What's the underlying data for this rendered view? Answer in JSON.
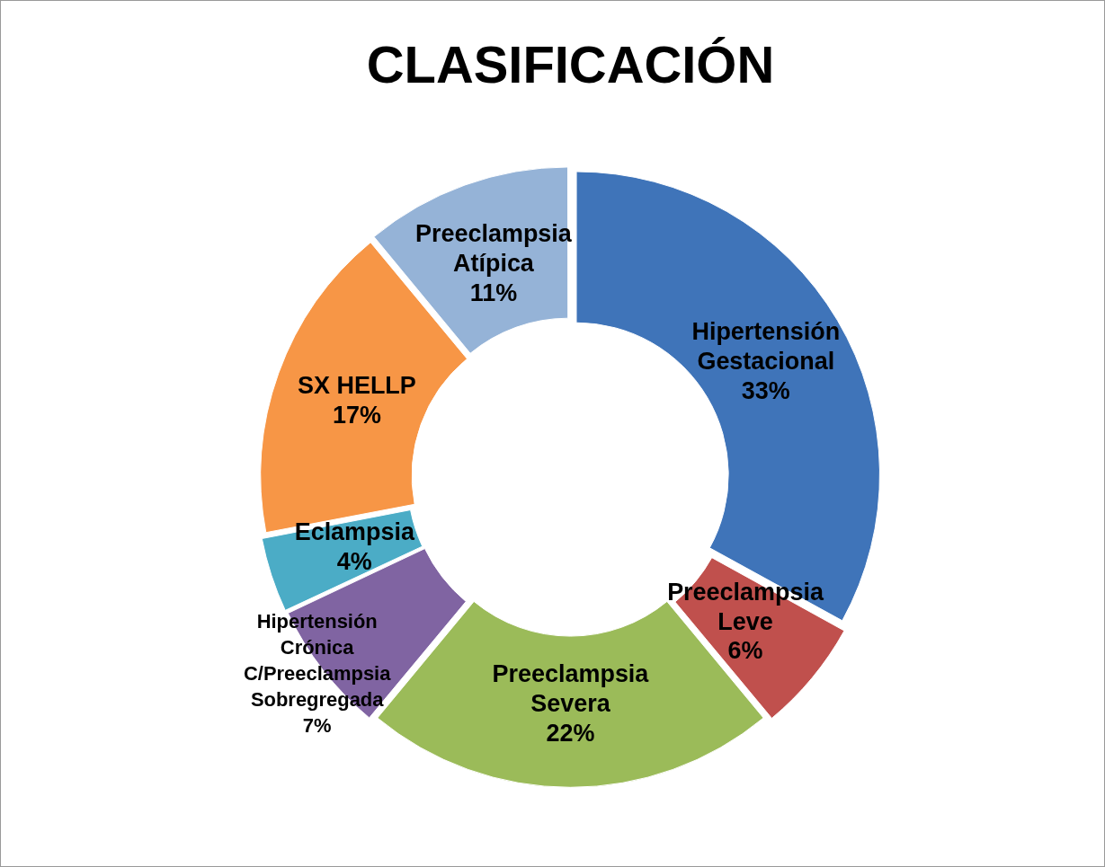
{
  "chart_data": {
    "type": "donut",
    "title": "CLASIFICACIÓN",
    "categories": [
      "Hipertensión Gestacional",
      "Preeclampsia Leve",
      "Preeclampsia Severa",
      "Hipertensión Crónica C/Preeclampsia Sobregregada",
      "Eclampsia",
      "SX HELLP",
      "Preeclampsia Atípica"
    ],
    "values": [
      33,
      6,
      22,
      7,
      4,
      17,
      11
    ],
    "value_labels": [
      "33%",
      "6%",
      "22%",
      "7%",
      "4%",
      "17%",
      "11%"
    ],
    "colors": [
      "#3f74b9",
      "#c0504d",
      "#9bbb59",
      "#8064a2",
      "#4bacc6",
      "#f79646",
      "#95b3d7"
    ],
    "legend": false
  }
}
